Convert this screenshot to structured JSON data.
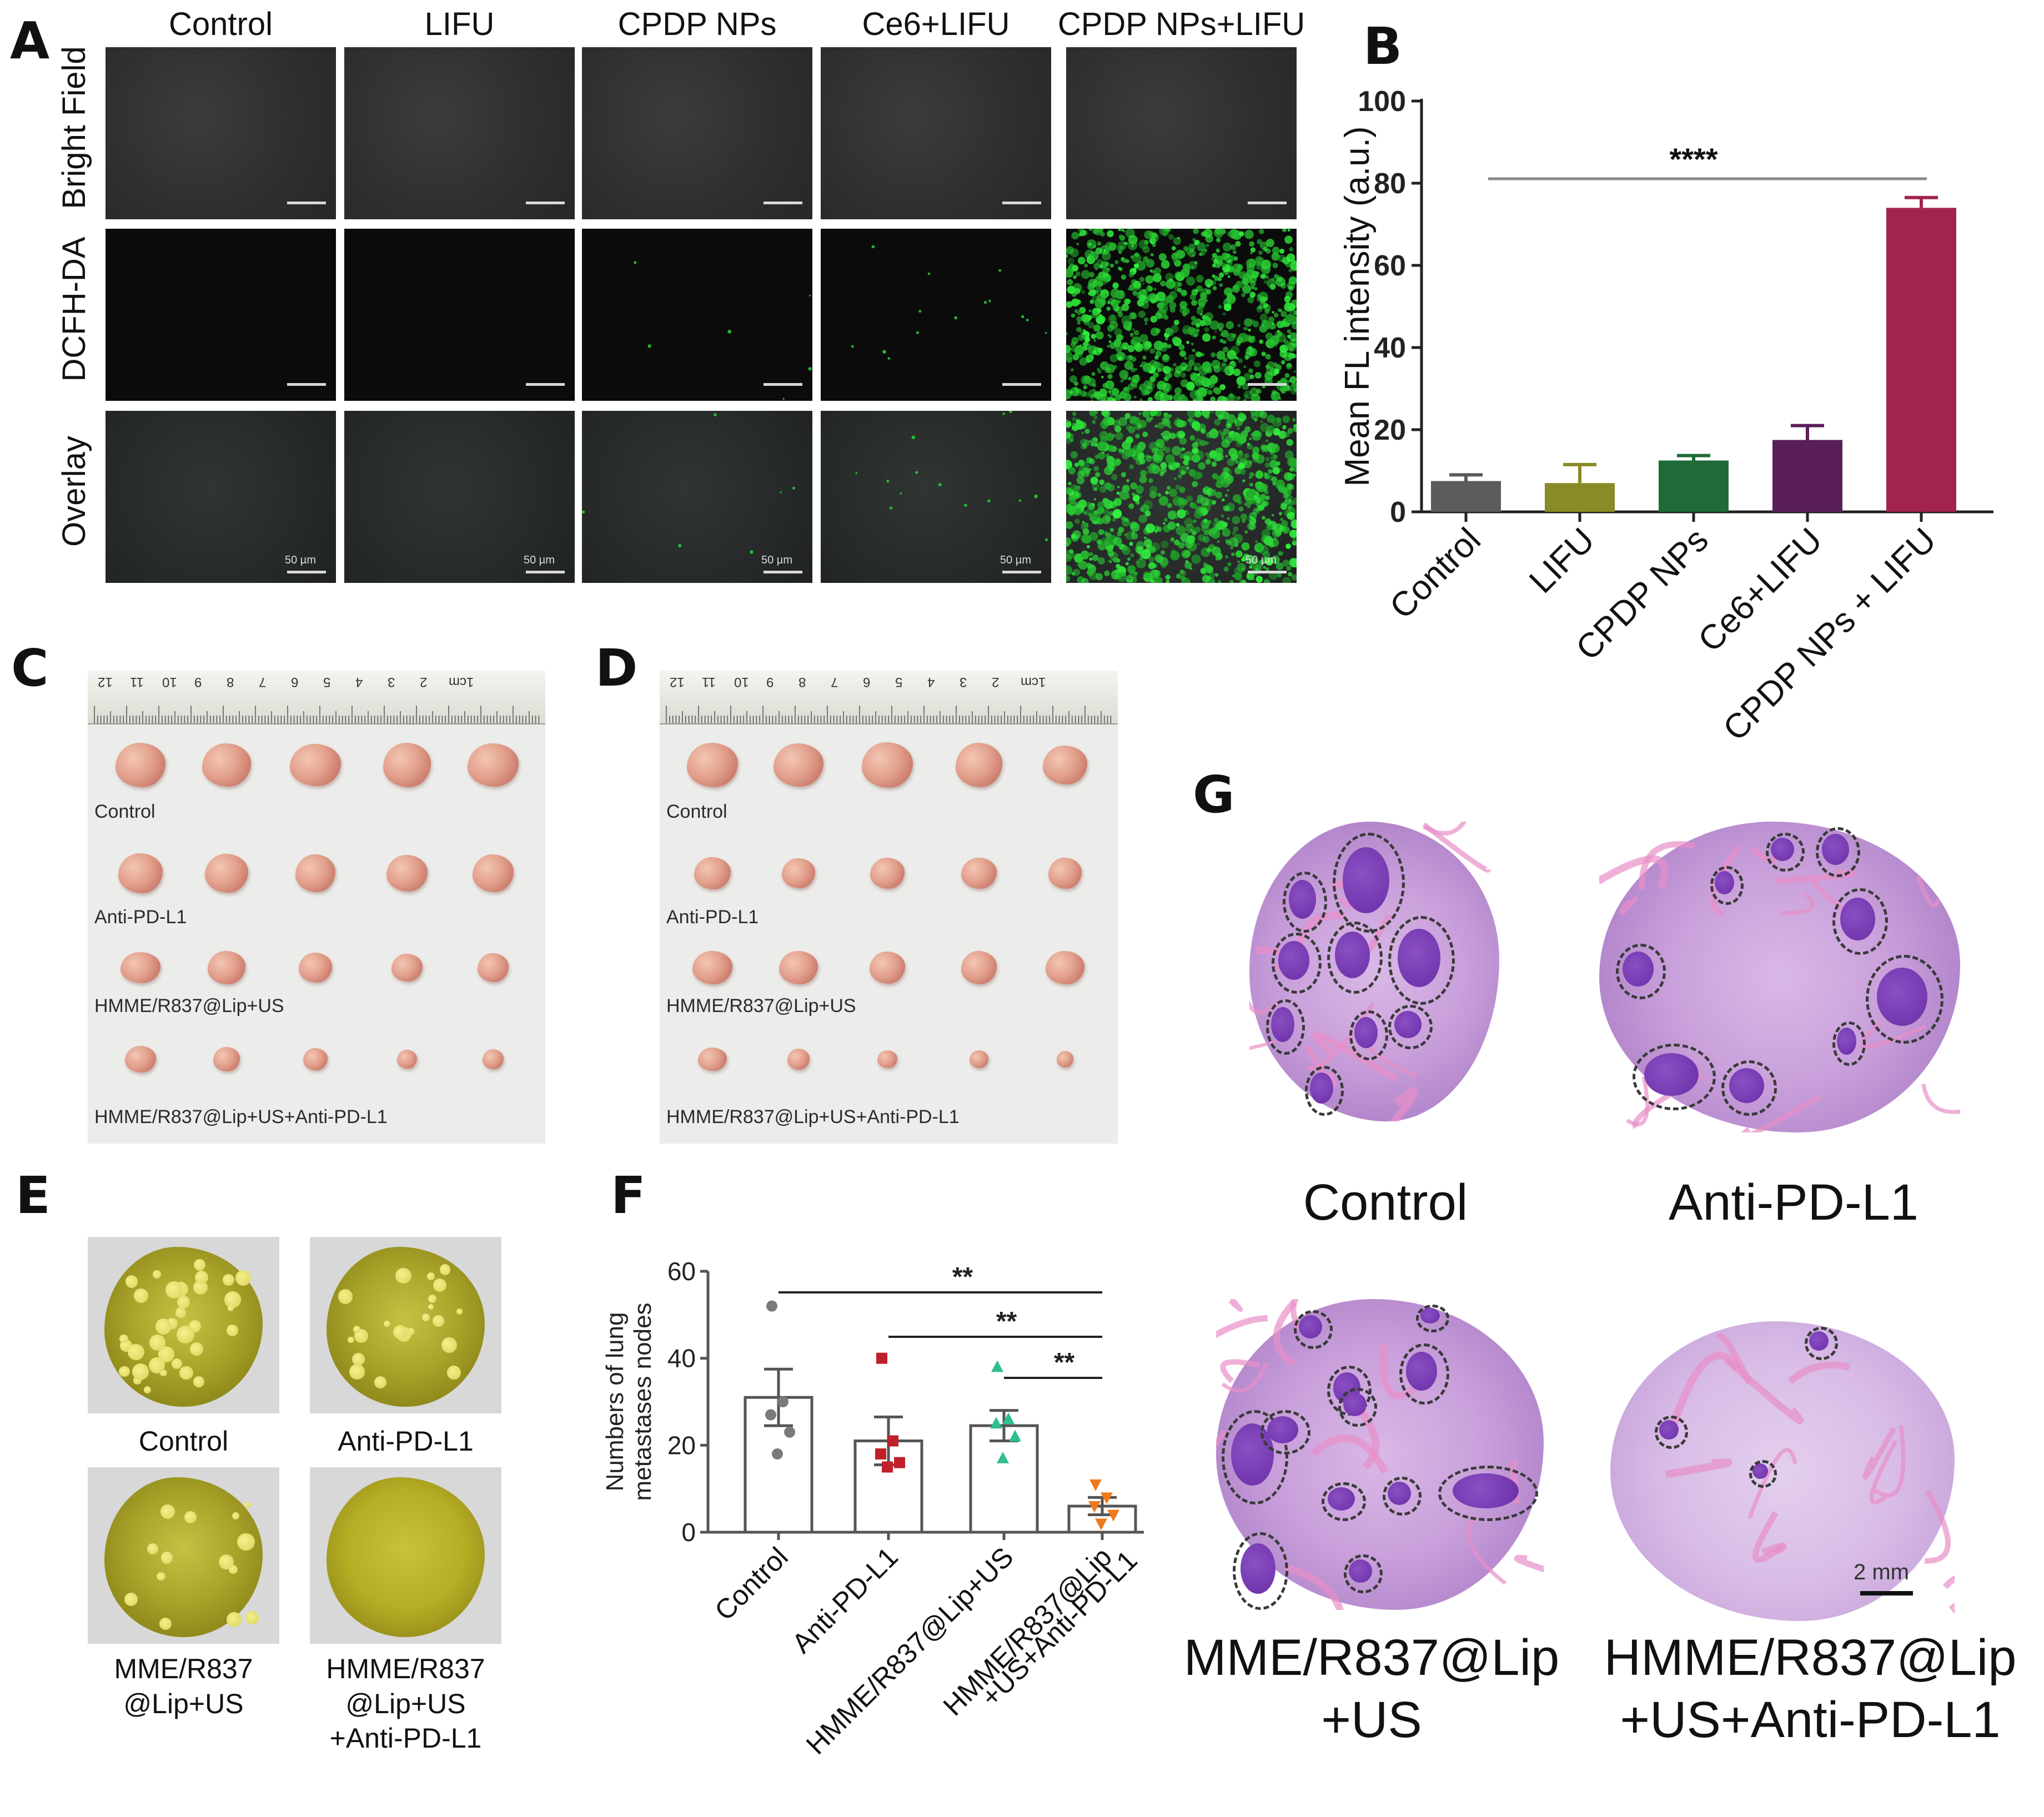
{
  "panels": {
    "A": {
      "letter": "A",
      "columns": [
        "Control",
        "LIFU",
        "CPDP NPs",
        "Ce6+LIFU",
        "CPDP NPs+LIFU"
      ],
      "rows": [
        "Bright Field",
        "DCFH-DA",
        "Overlay"
      ],
      "scale_label": "50 µm"
    },
    "B": {
      "letter": "B"
    },
    "C": {
      "letter": "C",
      "ruler_numbers": [
        "12",
        "11",
        "10",
        "9",
        "8",
        "7",
        "6",
        "5",
        "4",
        "3",
        "2",
        "1cm"
      ],
      "groups": [
        "Control",
        "Anti-PD-L1",
        "HMME/R837@Lip+US",
        "HMME/R837@Lip+US+Anti-PD-L1"
      ]
    },
    "D": {
      "letter": "D",
      "ruler_numbers": [
        "12",
        "11",
        "10",
        "9",
        "8",
        "7",
        "6",
        "5",
        "4",
        "3",
        "2",
        "1cm"
      ],
      "groups": [
        "Control",
        "Anti-PD-L1",
        "HMME/R837@Lip+US",
        "HMME/R837@Lip+US+Anti-PD-L1"
      ]
    },
    "E": {
      "letter": "E",
      "labels": [
        "Control",
        "Anti-PD-L1",
        "MME/R837\n@Lip+US",
        "HMME/R837\n@Lip+US\n+Anti-PD-L1"
      ]
    },
    "F": {
      "letter": "F"
    },
    "G": {
      "letter": "G",
      "labels": [
        "Control",
        "Anti-PD-L1",
        "MME/R837@Lip\n+US",
        "HMME/R837@Lip\n+US+Anti-PD-L1"
      ],
      "scale_label": "2 mm"
    }
  },
  "chart_data": [
    {
      "id": "B",
      "type": "bar",
      "categories": [
        "Control",
        "LIFU",
        "CPDP NPs",
        "Ce6+LIFU",
        "CPDP NPs + LIFU"
      ],
      "values": [
        7.5,
        7.0,
        12.5,
        17.5,
        74.0
      ],
      "errors": [
        1.5,
        4.5,
        1.2,
        3.5,
        2.5
      ],
      "colors": [
        "#5b5b5b",
        "#8a8a26",
        "#1f6b38",
        "#5a1f5a",
        "#a3234f"
      ],
      "ylabel": "Mean FL intensity (a.u.)",
      "ylim": [
        0,
        100
      ],
      "yticks": [
        0,
        20,
        40,
        60,
        80,
        100
      ],
      "significance": {
        "from": "Control",
        "to": "CPDP NPs + LIFU",
        "label": "****"
      }
    },
    {
      "id": "F",
      "type": "bar",
      "categories": [
        "Control",
        "Anti-PD-L1",
        "HMME/R837@Lip+US",
        "HMME/R837@Lip\n+US+Anti-PD-L1"
      ],
      "values": [
        31,
        21,
        24.5,
        6
      ],
      "errors": [
        6.5,
        5.5,
        3.5,
        2
      ],
      "points": [
        [
          52,
          30,
          27,
          23,
          18
        ],
        [
          40,
          21,
          18,
          16,
          15
        ],
        [
          38,
          26,
          25,
          22,
          17
        ],
        [
          11,
          8,
          6,
          4,
          2
        ]
      ],
      "point_colors": [
        "#7a7a7a",
        "#c0202a",
        "#2fbf8a",
        "#f07a1a"
      ],
      "point_shapes": [
        "circle",
        "square",
        "triangle-up",
        "triangle-down"
      ],
      "ylabel": "Numbers of lung\nmetastases nodes",
      "ylim": [
        0,
        60
      ],
      "yticks": [
        0,
        20,
        40,
        60
      ],
      "significance": [
        {
          "from": "Control",
          "to": "HMME/R837@Lip\n+US+Anti-PD-L1",
          "label": "**"
        },
        {
          "from": "Anti-PD-L1",
          "to": "HMME/R837@Lip\n+US+Anti-PD-L1",
          "label": "**"
        },
        {
          "from": "HMME/R837@Lip+US",
          "to": "HMME/R837@Lip\n+US+Anti-PD-L1",
          "label": "**"
        }
      ]
    }
  ]
}
